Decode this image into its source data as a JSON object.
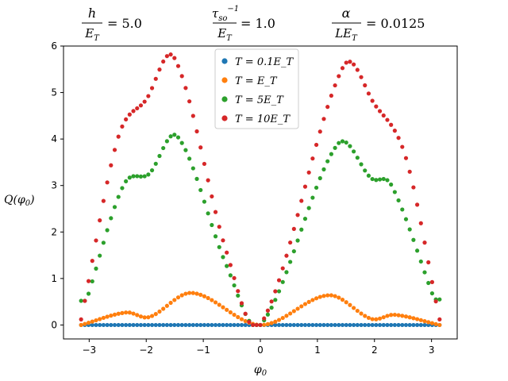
{
  "header": {
    "formulas": [
      {
        "numerator": "h",
        "denominator": "E_T",
        "value": "= 5.0"
      },
      {
        "numerator": "τ_so^−1",
        "denominator": "E_T",
        "value": "= 1.0"
      },
      {
        "numerator": "α",
        "denominator": "LE_T",
        "value": "= 0.0125"
      }
    ]
  },
  "chart_data": {
    "type": "scatter",
    "title": "",
    "xlabel": "φ0",
    "ylabel": "Q(φ0)",
    "xlim": [
      -3.45,
      3.45
    ],
    "ylim": [
      -0.3,
      6.0
    ],
    "xticks": [
      -3,
      -2,
      -1,
      0,
      1,
      2,
      3
    ],
    "yticks": [
      0,
      1,
      2,
      3,
      4,
      5,
      6
    ],
    "legend_position": "top-center",
    "grid": false,
    "series": [
      {
        "name": "T = 0.1E_T",
        "color": "#1f77b4",
        "model": "flat",
        "points": 97,
        "x_range": [
          -3.1416,
          3.1416
        ],
        "y_value": 0.0
      },
      {
        "name": "T = E_T",
        "color": "#ff7f0e",
        "model": "two-lobe",
        "points": 97,
        "x_range": [
          -3.1416,
          3.1416
        ],
        "key_points": [
          {
            "x": -3.14,
            "y": 0.0
          },
          {
            "x": -2.35,
            "y": 0.27
          },
          {
            "x": -1.95,
            "y": 0.17
          },
          {
            "x": -1.2,
            "y": 0.69
          },
          {
            "x": 0.0,
            "y": 0.0
          },
          {
            "x": 1.2,
            "y": 0.64
          },
          {
            "x": 1.95,
            "y": 0.13
          },
          {
            "x": 2.35,
            "y": 0.22
          },
          {
            "x": 3.14,
            "y": 0.0
          }
        ]
      },
      {
        "name": "T = 5E_T",
        "color": "#2ca02c",
        "model": "two-lobe",
        "points": 97,
        "x_range": [
          -3.1416,
          3.1416
        ],
        "key_points": [
          {
            "x": -3.05,
            "y": 0.52
          },
          {
            "x": -2.4,
            "y": 3.0
          },
          {
            "x": -1.95,
            "y": 3.25
          },
          {
            "x": -1.45,
            "y": 4.05
          },
          {
            "x": -0.6,
            "y": 1.3
          },
          {
            "x": 0.0,
            "y": 0.0
          },
          {
            "x": 1.35,
            "y": 3.88
          },
          {
            "x": 1.95,
            "y": 3.15
          },
          {
            "x": 2.3,
            "y": 3.0
          },
          {
            "x": 3.05,
            "y": 0.55
          }
        ]
      },
      {
        "name": "T = 10E_T",
        "color": "#d62728",
        "model": "two-lobe",
        "points": 97,
        "x_range": [
          -3.1416,
          3.1416
        ],
        "key_points": [
          {
            "x": -3.14,
            "y": 0.12
          },
          {
            "x": -2.5,
            "y": 4.0
          },
          {
            "x": -2.0,
            "y": 4.85
          },
          {
            "x": -1.5,
            "y": 5.73
          },
          {
            "x": -0.6,
            "y": 1.6
          },
          {
            "x": 0.0,
            "y": 0.0
          },
          {
            "x": 1.45,
            "y": 5.55
          },
          {
            "x": 2.0,
            "y": 4.75
          },
          {
            "x": 2.55,
            "y": 3.6
          },
          {
            "x": 3.14,
            "y": 0.12
          }
        ]
      }
    ]
  }
}
